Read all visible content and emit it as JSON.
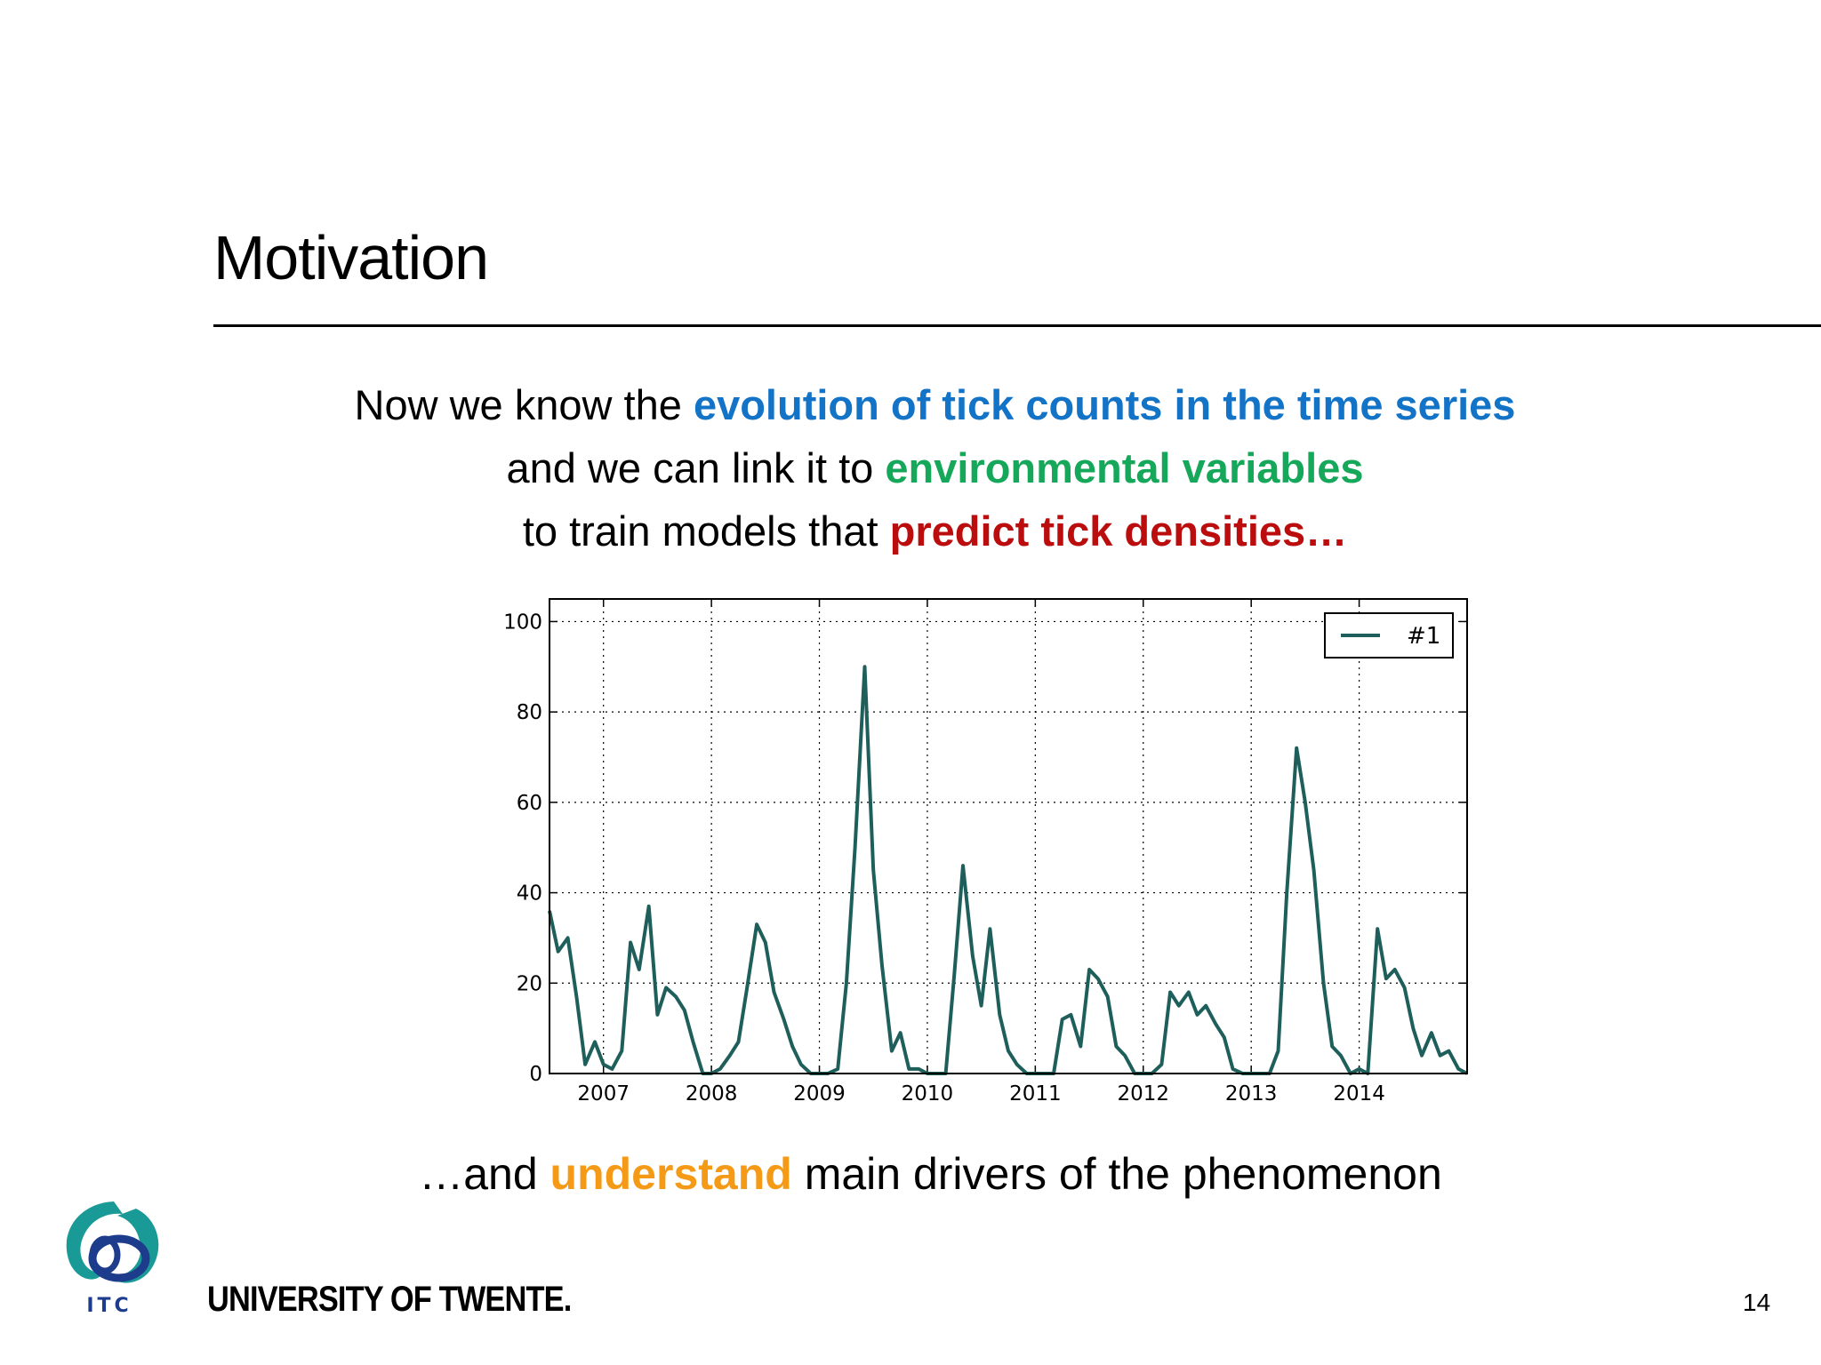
{
  "slide": {
    "title": "Motivation",
    "line1_pre": "Now we know the ",
    "line1_accent": "evolution of tick counts in the time series",
    "line2_pre": "and we can link it to ",
    "line2_accent": "environmental variables",
    "line3_pre": "to train models that ",
    "line3_accent": "predict tick densities…",
    "bottom_pre": "…and ",
    "bottom_accent": "understand",
    "bottom_post": " main drivers of the phenomenon",
    "university": "UNIVERSITY OF TWENTE.",
    "logo_text": "ITC",
    "page_number": "14"
  },
  "colors": {
    "blue": "#1273c7",
    "green": "#16a85a",
    "red": "#bb0d0d",
    "orange": "#f59a16",
    "series": "#1f5f5b",
    "logo_teal": "#1a9a96",
    "logo_navy": "#1e3c8c"
  },
  "chart_data": {
    "type": "line",
    "title": "",
    "xlabel": "",
    "ylabel": "",
    "ylim": [
      0,
      105
    ],
    "xlim": [
      2006.5,
      2015.0
    ],
    "x_ticks": [
      "2007",
      "2008",
      "2009",
      "2010",
      "2011",
      "2012",
      "2013",
      "2014"
    ],
    "y_ticks": [
      "0",
      "20",
      "40",
      "60",
      "80",
      "100"
    ],
    "grid": true,
    "legend_position": "top-right",
    "series": [
      {
        "name": "#1",
        "x": [
          2006.5,
          2006.58,
          2006.67,
          2006.75,
          2006.83,
          2006.92,
          2007.0,
          2007.08,
          2007.17,
          2007.25,
          2007.33,
          2007.42,
          2007.5,
          2007.58,
          2007.67,
          2007.75,
          2007.83,
          2007.92,
          2008.0,
          2008.08,
          2008.17,
          2008.25,
          2008.33,
          2008.42,
          2008.5,
          2008.58,
          2008.67,
          2008.75,
          2008.83,
          2008.92,
          2009.0,
          2009.08,
          2009.17,
          2009.25,
          2009.33,
          2009.42,
          2009.5,
          2009.58,
          2009.67,
          2009.75,
          2009.83,
          2009.92,
          2010.0,
          2010.08,
          2010.17,
          2010.25,
          2010.33,
          2010.42,
          2010.5,
          2010.58,
          2010.67,
          2010.75,
          2010.83,
          2010.92,
          2011.0,
          2011.08,
          2011.17,
          2011.25,
          2011.33,
          2011.42,
          2011.5,
          2011.58,
          2011.67,
          2011.75,
          2011.83,
          2011.92,
          2012.0,
          2012.08,
          2012.17,
          2012.25,
          2012.33,
          2012.42,
          2012.5,
          2012.58,
          2012.67,
          2012.75,
          2012.83,
          2012.92,
          2013.0,
          2013.08,
          2013.17,
          2013.25,
          2013.33,
          2013.42,
          2013.5,
          2013.58,
          2013.67,
          2013.75,
          2013.83,
          2013.92,
          2014.0,
          2014.08,
          2014.17,
          2014.25,
          2014.33,
          2014.42,
          2014.5,
          2014.58,
          2014.67,
          2014.75,
          2014.83,
          2014.92,
          2015.0
        ],
        "values": [
          36,
          27,
          30,
          17,
          2,
          7,
          2,
          1,
          5,
          29,
          23,
          37,
          13,
          19,
          17,
          14,
          7,
          0,
          0,
          1,
          4,
          7,
          19,
          33,
          29,
          18,
          12,
          6,
          2,
          0,
          0,
          0,
          1,
          20,
          50,
          90,
          45,
          24,
          5,
          9,
          1,
          1,
          0,
          0,
          0,
          22,
          46,
          26,
          15,
          32,
          13,
          5,
          2,
          0,
          0,
          0,
          0,
          12,
          13,
          6,
          23,
          21,
          17,
          6,
          4,
          0,
          0,
          0,
          2,
          18,
          15,
          18,
          13,
          15,
          11,
          8,
          1,
          0,
          0,
          0,
          0,
          5,
          40,
          72,
          60,
          45,
          20,
          6,
          4,
          0,
          1,
          0,
          32,
          21,
          23,
          19,
          10,
          4,
          9,
          4,
          5,
          1,
          0
        ]
      }
    ]
  }
}
